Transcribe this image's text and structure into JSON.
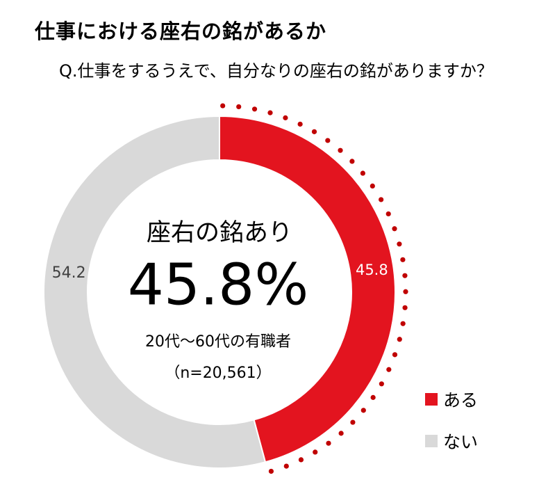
{
  "title": "仕事における座右の銘があるか",
  "subtitle": "Q.仕事をするうえで、自分なりの座右の銘がありますか？",
  "colors": {
    "yes": "#e3141f",
    "no": "#d9d9d9",
    "dots": "#c00000",
    "yes_label": "#ffffff",
    "no_label": "#404040"
  },
  "center": {
    "label": "座右の銘あり",
    "value": "45.8%",
    "population": "20代～60代の有職者",
    "sample": "（n=20,561）"
  },
  "legend": [
    {
      "label": "ある",
      "color": "#e3141f"
    },
    {
      "label": "ない",
      "color": "#d9d9d9"
    }
  ],
  "chart_data": {
    "type": "pie",
    "donut": true,
    "categories": [
      "ある",
      "ない"
    ],
    "values": [
      45.8,
      54.2
    ],
    "data_labels": [
      "45.8",
      "54.2"
    ],
    "title": "仕事における座右の銘があるか",
    "legend_position": "bottom-right"
  }
}
